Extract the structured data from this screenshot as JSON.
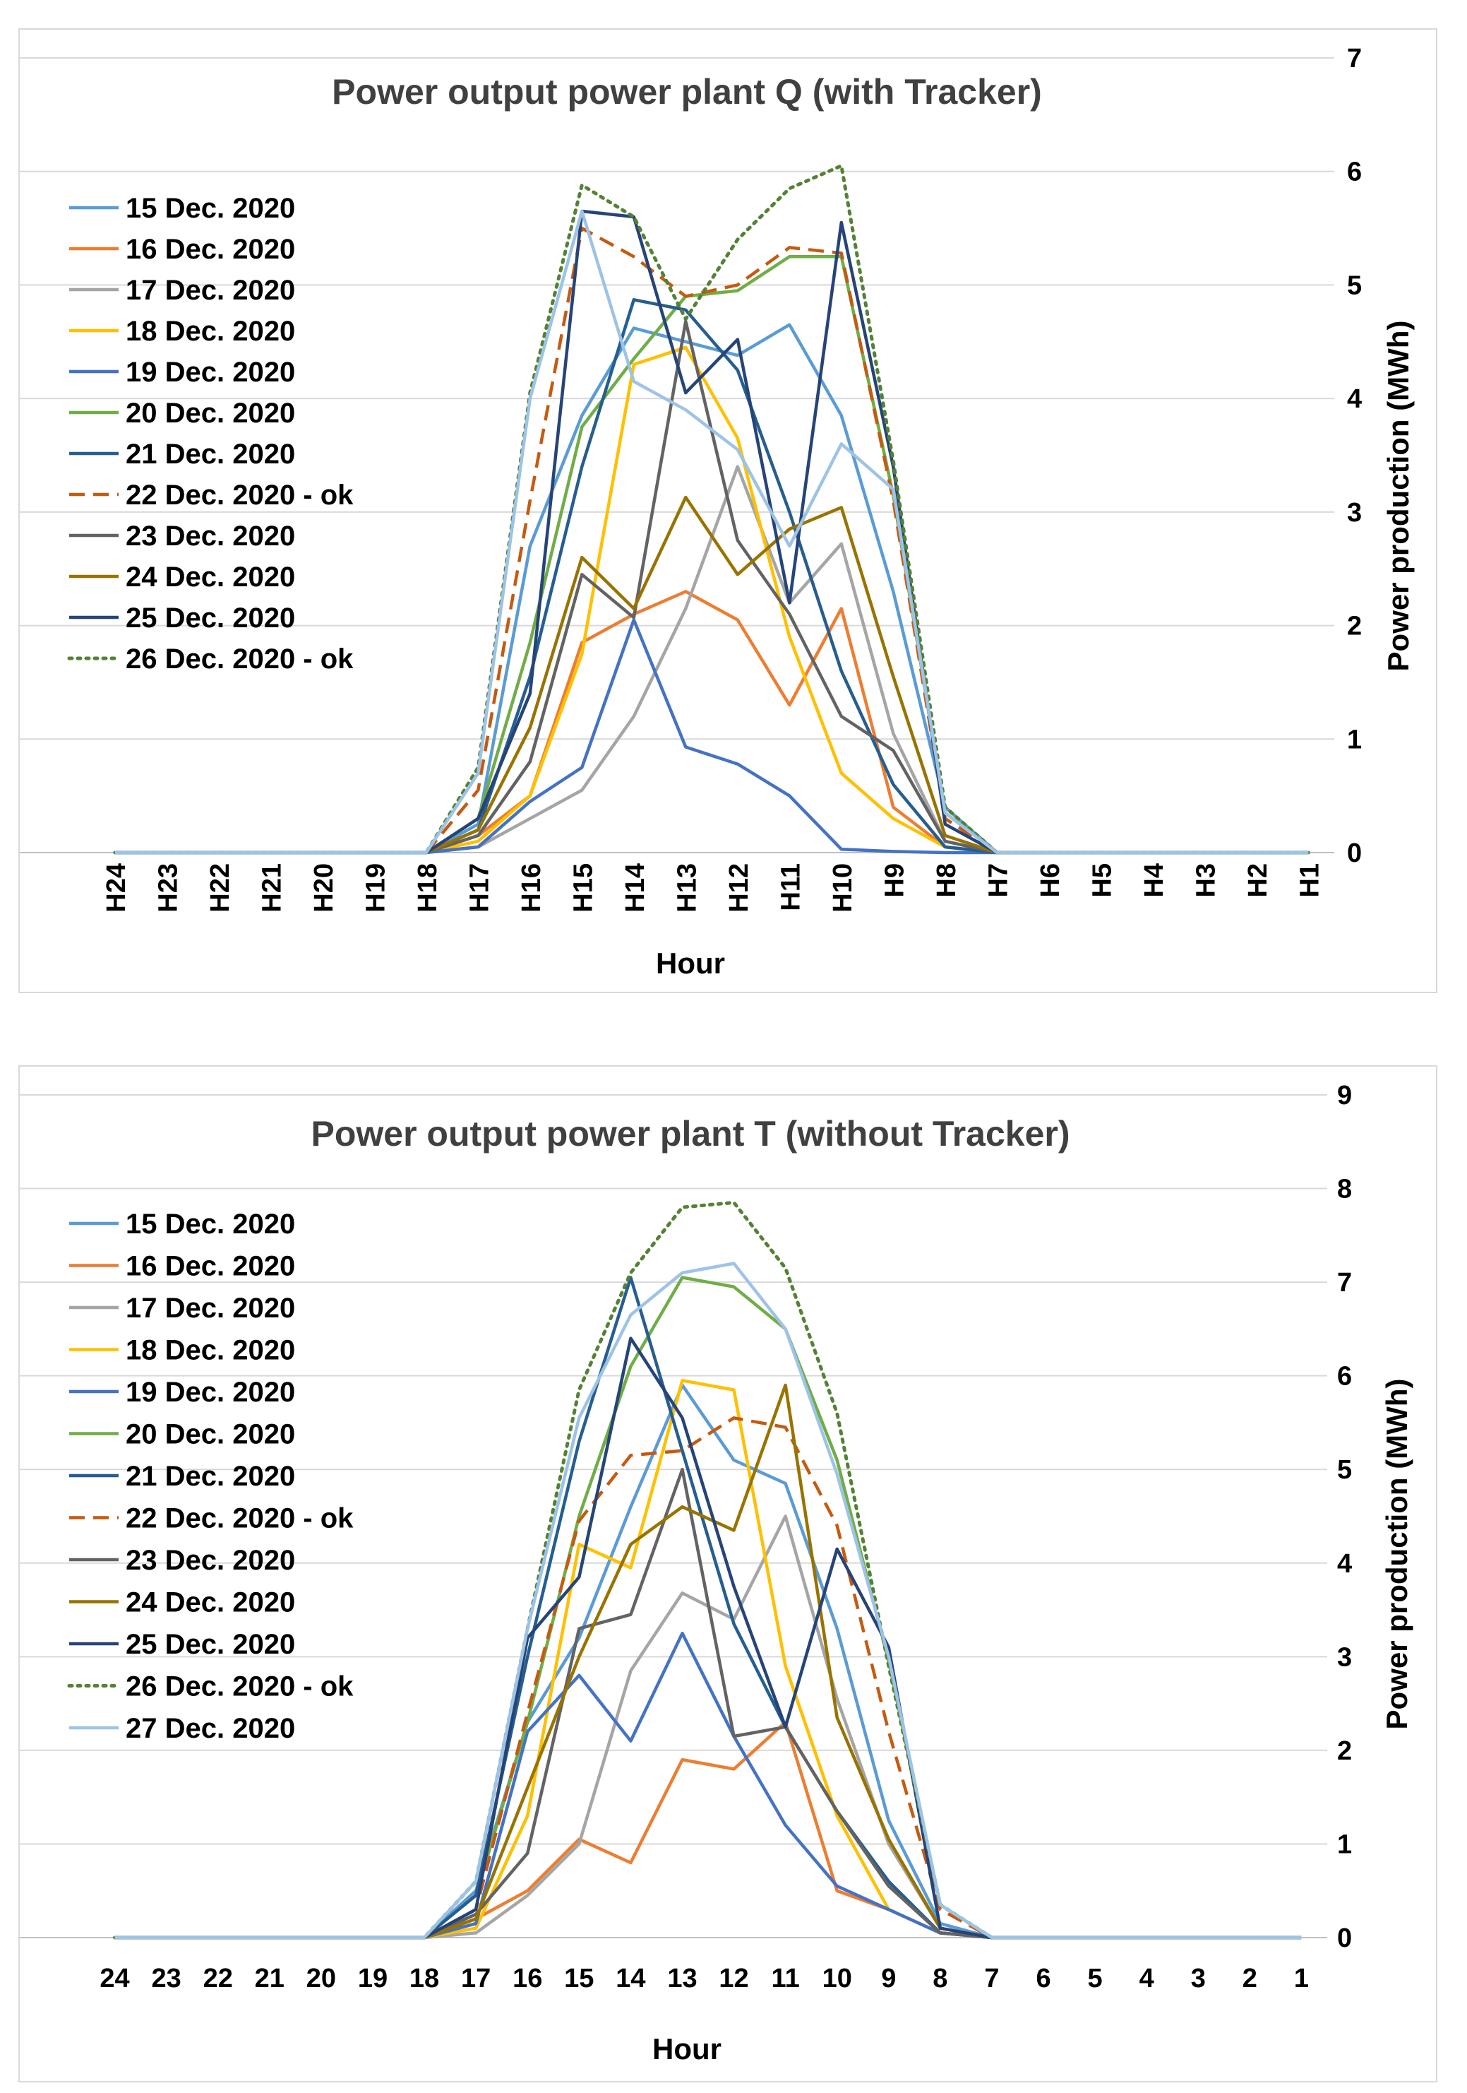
{
  "chart_data": [
    {
      "type": "line",
      "title": "Power output power plant Q (with Tracker)",
      "xlabel": "Hour",
      "ylabel": "Power production (MWh)",
      "ylim": [
        0,
        7
      ],
      "yticks": [
        "0",
        "1",
        "2",
        "3",
        "4",
        "5",
        "6",
        "7"
      ],
      "x": [
        "H24",
        "H23",
        "H22",
        "H21",
        "H20",
        "H19",
        "H18",
        "H17",
        "H16",
        "H15",
        "H14",
        "H13",
        "H12",
        "H11",
        "H10",
        "H9",
        "H8",
        "H7",
        "H6",
        "H5",
        "H4",
        "H3",
        "H2",
        "H1"
      ],
      "series": [
        {
          "name": "15 Dec. 2020",
          "color": "#5b9bd5",
          "dash": "solid",
          "values": [
            0,
            0,
            0,
            0,
            0,
            0,
            0,
            0.25,
            2.7,
            3.85,
            4.62,
            4.5,
            4.38,
            4.65,
            3.85,
            2.3,
            0.4,
            0,
            0,
            0,
            0,
            0,
            0,
            0
          ]
        },
        {
          "name": "16 Dec. 2020",
          "color": "#ed7d31",
          "dash": "solid",
          "values": [
            0,
            0,
            0,
            0,
            0,
            0,
            0,
            0.15,
            0.5,
            1.85,
            2.1,
            2.3,
            2.05,
            1.3,
            2.15,
            0.4,
            0.05,
            0,
            0,
            0,
            0,
            0,
            0,
            0
          ]
        },
        {
          "name": "17 Dec. 2020",
          "color": "#a5a5a5",
          "dash": "solid",
          "values": [
            0,
            0,
            0,
            0,
            0,
            0,
            0,
            0.05,
            0.3,
            0.55,
            1.2,
            2.15,
            3.4,
            2.2,
            2.72,
            1.05,
            0.1,
            0,
            0,
            0,
            0,
            0,
            0,
            0
          ]
        },
        {
          "name": "18 Dec. 2020",
          "color": "#ffc000",
          "dash": "solid",
          "values": [
            0,
            0,
            0,
            0,
            0,
            0,
            0,
            0.1,
            0.5,
            1.75,
            4.3,
            4.45,
            3.65,
            1.9,
            0.7,
            0.3,
            0.05,
            0,
            0,
            0,
            0,
            0,
            0,
            0
          ]
        },
        {
          "name": "19 Dec. 2020",
          "color": "#4472c4",
          "dash": "solid",
          "values": [
            0,
            0,
            0,
            0,
            0,
            0,
            0,
            0.05,
            0.45,
            0.75,
            2.05,
            0.93,
            0.78,
            0.5,
            0.03,
            0.01,
            0,
            0,
            0,
            0,
            0,
            0,
            0,
            0
          ]
        },
        {
          "name": "20 Dec. 2020",
          "color": "#70ad47",
          "dash": "solid",
          "values": [
            0,
            0,
            0,
            0,
            0,
            0,
            0,
            0.3,
            1.85,
            3.75,
            4.35,
            4.9,
            4.95,
            5.25,
            5.25,
            3.15,
            0.35,
            0,
            0,
            0,
            0,
            0,
            0,
            0
          ]
        },
        {
          "name": "21 Dec. 2020",
          "color": "#255e91",
          "dash": "solid",
          "values": [
            0,
            0,
            0,
            0,
            0,
            0,
            0,
            0.2,
            1.55,
            3.4,
            4.87,
            4.78,
            4.25,
            3.0,
            1.6,
            0.6,
            0.05,
            0,
            0,
            0,
            0,
            0,
            0,
            0
          ]
        },
        {
          "name": "22 Dec. 2020 - ok",
          "color": "#c55a11",
          "dash": "dashed",
          "values": [
            0,
            0,
            0,
            0,
            0,
            0,
            0,
            0.55,
            3.1,
            5.5,
            5.25,
            4.9,
            5.0,
            5.33,
            5.28,
            3.1,
            0.3,
            0,
            0,
            0,
            0,
            0,
            0,
            0
          ]
        },
        {
          "name": "23 Dec. 2020",
          "color": "#636363",
          "dash": "solid",
          "values": [
            0,
            0,
            0,
            0,
            0,
            0,
            0,
            0.15,
            0.8,
            2.45,
            2.07,
            4.68,
            2.75,
            2.1,
            1.2,
            0.9,
            0.1,
            0,
            0,
            0,
            0,
            0,
            0,
            0
          ]
        },
        {
          "name": "24 Dec. 2020",
          "color": "#997300",
          "dash": "solid",
          "values": [
            0,
            0,
            0,
            0,
            0,
            0,
            0,
            0.2,
            1.1,
            2.6,
            2.15,
            3.13,
            2.45,
            2.85,
            3.04,
            1.55,
            0.15,
            0,
            0,
            0,
            0,
            0,
            0,
            0
          ]
        },
        {
          "name": "25 Dec. 2020",
          "color": "#264478",
          "dash": "solid",
          "values": [
            0,
            0,
            0,
            0,
            0,
            0,
            0,
            0.3,
            1.4,
            5.65,
            5.6,
            4.05,
            4.52,
            2.2,
            5.55,
            3.4,
            0.25,
            0,
            0,
            0,
            0,
            0,
            0,
            0
          ]
        },
        {
          "name": "26 Dec. 2020 - ok",
          "color": "#548235",
          "dash": "dotted",
          "values": [
            0,
            0,
            0,
            0,
            0,
            0,
            0,
            0.75,
            4.05,
            5.88,
            5.6,
            4.7,
            5.4,
            5.85,
            6.05,
            3.45,
            0.4,
            0,
            0,
            0,
            0,
            0,
            0,
            0
          ]
        },
        {
          "name": "",
          "color": "#9dc3e6",
          "dash": "solid",
          "legend": false,
          "values": [
            0,
            0,
            0,
            0,
            0,
            0,
            0,
            0.7,
            4.0,
            5.65,
            4.15,
            3.9,
            3.55,
            2.7,
            3.6,
            3.2,
            0.35,
            0,
            0,
            0,
            0,
            0,
            0,
            0
          ]
        }
      ]
    },
    {
      "type": "line",
      "title": "Power output power plant T (without Tracker)",
      "xlabel": "Hour",
      "ylabel": "Power production (MWh)",
      "ylim": [
        0,
        9
      ],
      "yticks": [
        "0",
        "1",
        "2",
        "3",
        "4",
        "5",
        "6",
        "7",
        "8",
        "9"
      ],
      "x": [
        "24",
        "23",
        "22",
        "21",
        "20",
        "19",
        "18",
        "17",
        "16",
        "15",
        "14",
        "13",
        "12",
        "11",
        "10",
        "9",
        "8",
        "7",
        "6",
        "5",
        "4",
        "3",
        "2",
        "1"
      ],
      "series": [
        {
          "name": "15 Dec. 2020",
          "color": "#5b9bd5",
          "dash": "solid",
          "values": [
            0,
            0,
            0,
            0,
            0,
            0,
            0,
            0.5,
            2.3,
            3.2,
            4.6,
            5.9,
            5.1,
            4.85,
            3.3,
            1.25,
            0.15,
            0,
            0,
            0,
            0,
            0,
            0,
            0
          ]
        },
        {
          "name": "16 Dec. 2020",
          "color": "#ed7d31",
          "dash": "solid",
          "values": [
            0,
            0,
            0,
            0,
            0,
            0,
            0,
            0.2,
            0.5,
            1.05,
            0.8,
            1.9,
            1.8,
            2.3,
            0.5,
            0.3,
            0.05,
            0,
            0,
            0,
            0,
            0,
            0,
            0
          ]
        },
        {
          "name": "17 Dec. 2020",
          "color": "#a5a5a5",
          "dash": "solid",
          "values": [
            0,
            0,
            0,
            0,
            0,
            0,
            0,
            0.05,
            0.45,
            1.0,
            2.85,
            3.68,
            3.4,
            4.5,
            2.55,
            1.0,
            0.1,
            0,
            0,
            0,
            0,
            0,
            0,
            0
          ]
        },
        {
          "name": "18 Dec. 2020",
          "color": "#ffc000",
          "dash": "solid",
          "values": [
            0,
            0,
            0,
            0,
            0,
            0,
            0,
            0.1,
            1.3,
            4.2,
            3.95,
            5.95,
            5.85,
            2.9,
            1.3,
            0.3,
            0.05,
            0,
            0,
            0,
            0,
            0,
            0,
            0
          ]
        },
        {
          "name": "19 Dec. 2020",
          "color": "#4472c4",
          "dash": "solid",
          "values": [
            0,
            0,
            0,
            0,
            0,
            0,
            0,
            0.15,
            2.2,
            2.8,
            2.1,
            3.25,
            2.15,
            1.2,
            0.55,
            0.3,
            0.05,
            0,
            0,
            0,
            0,
            0,
            0,
            0
          ]
        },
        {
          "name": "20 Dec. 2020",
          "color": "#70ad47",
          "dash": "solid",
          "values": [
            0,
            0,
            0,
            0,
            0,
            0,
            0,
            0.45,
            2.3,
            4.5,
            6.1,
            7.05,
            6.95,
            6.5,
            5.1,
            2.95,
            0.35,
            0,
            0,
            0,
            0,
            0,
            0,
            0
          ]
        },
        {
          "name": "21 Dec. 2020",
          "color": "#255e91",
          "dash": "solid",
          "values": [
            0,
            0,
            0,
            0,
            0,
            0,
            0,
            0.45,
            3.0,
            5.3,
            7.05,
            5.2,
            3.35,
            2.25,
            1.35,
            0.6,
            0.05,
            0,
            0,
            0,
            0,
            0,
            0,
            0
          ]
        },
        {
          "name": "22 Dec. 2020 - ok",
          "color": "#c55a11",
          "dash": "dashed",
          "values": [
            0,
            0,
            0,
            0,
            0,
            0,
            0,
            0.3,
            2.4,
            4.45,
            5.15,
            5.2,
            5.55,
            5.45,
            4.4,
            2.2,
            0.3,
            0,
            0,
            0,
            0,
            0,
            0,
            0
          ]
        },
        {
          "name": "23 Dec. 2020",
          "color": "#636363",
          "dash": "solid",
          "values": [
            0,
            0,
            0,
            0,
            0,
            0,
            0,
            0.25,
            0.9,
            3.3,
            3.45,
            5.0,
            2.15,
            2.25,
            1.35,
            0.55,
            0.05,
            0,
            0,
            0,
            0,
            0,
            0,
            0
          ]
        },
        {
          "name": "24 Dec. 2020",
          "color": "#997300",
          "dash": "solid",
          "values": [
            0,
            0,
            0,
            0,
            0,
            0,
            0,
            0.2,
            1.6,
            3.0,
            4.2,
            4.6,
            4.35,
            5.9,
            2.35,
            1.05,
            0.1,
            0,
            0,
            0,
            0,
            0,
            0,
            0
          ]
        },
        {
          "name": "25 Dec. 2020",
          "color": "#264478",
          "dash": "solid",
          "values": [
            0,
            0,
            0,
            0,
            0,
            0,
            0,
            0.3,
            3.2,
            3.85,
            6.4,
            5.55,
            3.75,
            2.25,
            4.15,
            3.1,
            0.1,
            0,
            0,
            0,
            0,
            0,
            0,
            0
          ]
        },
        {
          "name": "26 Dec. 2020 - ok",
          "color": "#548235",
          "dash": "dotted",
          "values": [
            0,
            0,
            0,
            0,
            0,
            0,
            0,
            0.6,
            3.3,
            5.85,
            7.1,
            7.8,
            7.85,
            7.15,
            5.6,
            2.9,
            0.35,
            0,
            0,
            0,
            0,
            0,
            0,
            0
          ]
        },
        {
          "name": "27 Dec. 2020",
          "color": "#9dc3e6",
          "dash": "solid",
          "values": [
            0,
            0,
            0,
            0,
            0,
            0,
            0,
            0.6,
            3.3,
            5.55,
            6.65,
            7.1,
            7.2,
            6.5,
            4.95,
            3.0,
            0.35,
            0,
            0,
            0,
            0,
            0,
            0,
            0
          ]
        }
      ]
    }
  ],
  "colors": {
    "grid": "#d9d9d9",
    "text": "#000000",
    "title": "#404040"
  }
}
